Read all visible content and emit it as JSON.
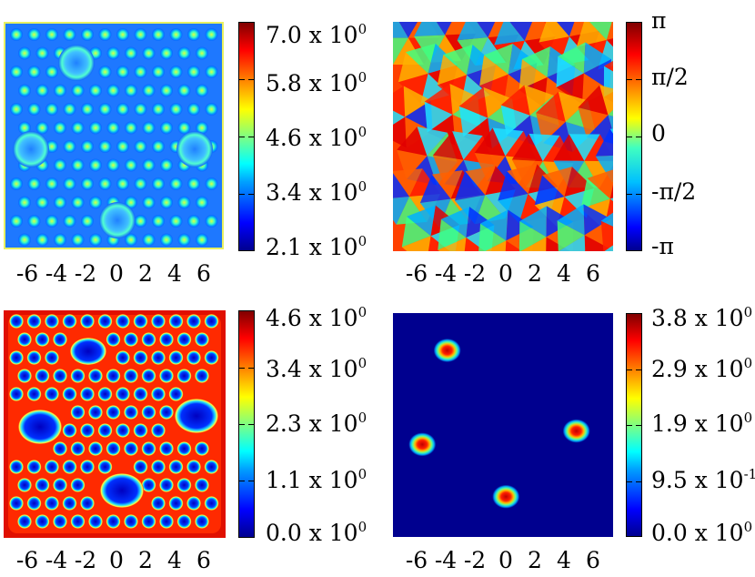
{
  "chart_data": [
    {
      "type": "heatmap",
      "x_tick_labels": [
        "-6",
        "-4",
        "-2",
        "0",
        "2",
        "4",
        "6"
      ],
      "xlim": [
        -7.5,
        7.5
      ],
      "colorbar": {
        "min": 2.1,
        "max": 7.0,
        "tick_labels": [
          {
            "mantissa": "7.0",
            "exponent": "0"
          },
          {
            "mantissa": "5.8",
            "exponent": "0"
          },
          {
            "mantissa": "4.6",
            "exponent": "0"
          },
          {
            "mantissa": "3.4",
            "exponent": "0"
          },
          {
            "mantissa": "2.1",
            "exponent": "0"
          }
        ]
      }
    },
    {
      "type": "heatmap",
      "x_tick_labels": [
        "-6",
        "-4",
        "-2",
        "0",
        "2",
        "4",
        "6"
      ],
      "xlim": [
        -7.5,
        7.5
      ],
      "colorbar": {
        "min": "-π",
        "max": "π",
        "tick_labels": [
          "π",
          "π/2",
          "0",
          "-π/2",
          "-π"
        ]
      }
    },
    {
      "type": "heatmap",
      "x_tick_labels": [
        "-6",
        "-4",
        "-2",
        "0",
        "2",
        "4",
        "6"
      ],
      "xlim": [
        -7.5,
        7.5
      ],
      "colorbar": {
        "min": 0.0,
        "max": 4.6,
        "tick_labels": [
          {
            "mantissa": "4.6",
            "exponent": "0"
          },
          {
            "mantissa": "3.4",
            "exponent": "0"
          },
          {
            "mantissa": "2.3",
            "exponent": "0"
          },
          {
            "mantissa": "1.1",
            "exponent": "0"
          },
          {
            "mantissa": "0.0",
            "exponent": "0"
          }
        ]
      }
    },
    {
      "type": "heatmap",
      "x_tick_labels": [
        "-6",
        "-4",
        "-2",
        "0",
        "2",
        "4",
        "6"
      ],
      "xlim": [
        -7.5,
        7.5
      ],
      "colorbar": {
        "min": 0.0,
        "max": 3.8,
        "tick_labels": [
          {
            "mantissa": "3.8",
            "exponent": "0"
          },
          {
            "mantissa": "2.9",
            "exponent": "0"
          },
          {
            "mantissa": "1.9",
            "exponent": "0"
          },
          {
            "mantissa": "9.5",
            "exponent": "-1"
          },
          {
            "mantissa": "0.0",
            "exponent": "0"
          }
        ]
      },
      "blobs": [
        {
          "x": -3.8,
          "y": 5.0
        },
        {
          "x": -5.5,
          "y": -1.3
        },
        {
          "x": 5.0,
          "y": -0.4
        },
        {
          "x": 0.2,
          "y": -4.8
        }
      ]
    }
  ],
  "mult_symbol": "x",
  "base": "10"
}
